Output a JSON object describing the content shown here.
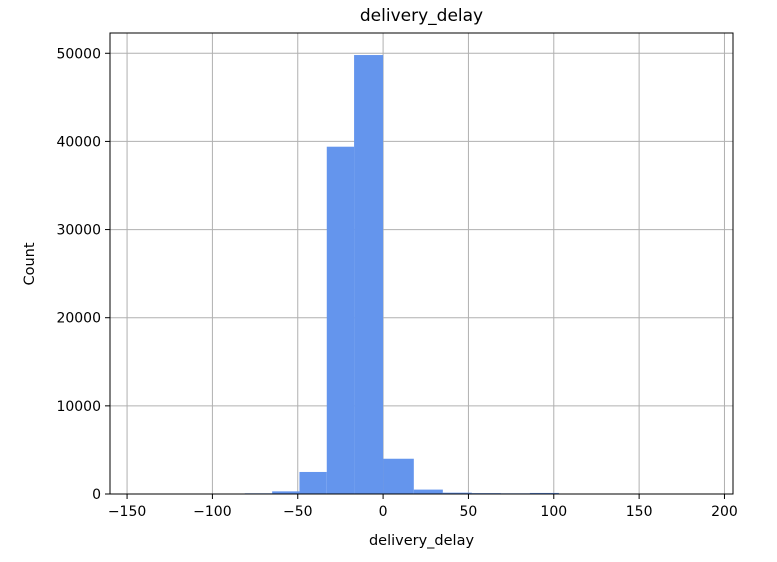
{
  "chart_data": {
    "type": "bar",
    "title": "delivery_delay",
    "xlabel": "delivery_delay",
    "ylabel": "Count",
    "xlim": [
      -160,
      205
    ],
    "ylim": [
      0,
      52300
    ],
    "grid": true,
    "bar_color": "#6495ED",
    "grid_color": "#b0b0b0",
    "x_ticks": [
      -150,
      -100,
      -50,
      0,
      50,
      100,
      150,
      200
    ],
    "x_tick_labels": [
      "−150",
      "−100",
      "−50",
      "0",
      "50",
      "100",
      "150",
      "200"
    ],
    "y_ticks": [
      0,
      10000,
      20000,
      30000,
      40000,
      50000
    ],
    "y_tick_labels": [
      "0",
      "10000",
      "20000",
      "30000",
      "40000",
      "50000"
    ],
    "bins": [
      {
        "x0": -81,
        "x1": -65,
        "count": 80
      },
      {
        "x0": -65,
        "x1": -49,
        "count": 300
      },
      {
        "x0": -49,
        "x1": -33,
        "count": 2500
      },
      {
        "x0": -33,
        "x1": -17,
        "count": 39400
      },
      {
        "x0": -17,
        "x1": 0,
        "count": 49800
      },
      {
        "x0": 0,
        "x1": 18,
        "count": 4000
      },
      {
        "x0": 18,
        "x1": 35,
        "count": 500
      },
      {
        "x0": 35,
        "x1": 52,
        "count": 150
      },
      {
        "x0": 52,
        "x1": 69,
        "count": 100
      },
      {
        "x0": 69,
        "x1": 86,
        "count": 80
      },
      {
        "x0": 86,
        "x1": 103,
        "count": 120
      }
    ]
  }
}
